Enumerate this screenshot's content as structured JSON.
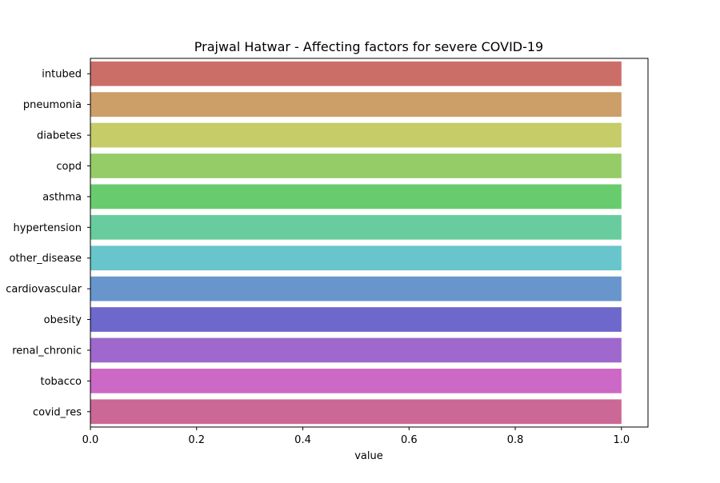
{
  "chart_data": {
    "type": "bar",
    "orientation": "horizontal",
    "title": "Prajwal Hatwar - Affecting factors for severe COVID-19",
    "xlabel": "value",
    "ylabel": "",
    "xlim": [
      0,
      1.05
    ],
    "xticks": [
      "0.0",
      "0.2",
      "0.4",
      "0.6",
      "0.8",
      "1.0"
    ],
    "grid": false,
    "categories": [
      "intubed",
      "pneumonia",
      "diabetes",
      "copd",
      "asthma",
      "hypertension",
      "other_disease",
      "cardiovascular",
      "obesity",
      "renal_chronic",
      "tobacco",
      "covid_res"
    ],
    "values": [
      1.0,
      1.0,
      1.0,
      1.0,
      1.0,
      1.0,
      1.0,
      1.0,
      1.0,
      1.0,
      1.0,
      1.0
    ],
    "colors": [
      "#cc6e68",
      "#cc9e68",
      "#c5cc68",
      "#95cc68",
      "#68cc6e",
      "#68cc9e",
      "#68c5cc",
      "#6895cc",
      "#6e68cc",
      "#9e68cc",
      "#cc68c5",
      "#cc6895"
    ]
  }
}
